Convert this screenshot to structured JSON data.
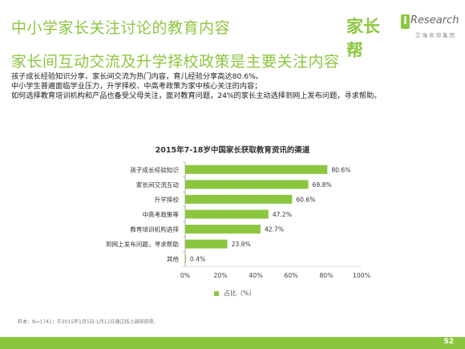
{
  "header": {
    "title": "中小学家长关注讨论的教育内容",
    "subtitle": "家长间互动交流及升学择校政策是主要关注内容"
  },
  "logos": {
    "jiazhangbang": "家长帮",
    "iresearch_i": "i",
    "iresearch": "Research",
    "iresearch_sub": "艾瑞咨询集团"
  },
  "description": [
    "孩子成长经验知识分享、家长间交流为热门内容，育儿经验分享高达80.6%。",
    "中小学生普遍面临学业压力，升学择校、中高考政策为家中核心关注的内容；",
    "如何选择教育培训机构和产品也备受父母关注，面对教育问题，24%的家长主动选择到网上发布问题，寻求帮助。"
  ],
  "chart_data": {
    "type": "bar",
    "orientation": "horizontal",
    "title": "2015年7-18岁中国家长获取教育资讯的渠道",
    "categories": [
      "孩子成长经验知识",
      "家长间交流互动",
      "升学择校",
      "中高考政策等",
      "教育培训机构选择",
      "到网上发布问题，寻求帮助",
      "其他"
    ],
    "values": [
      80.6,
      69.8,
      60.6,
      47.2,
      42.7,
      23.9,
      0.4
    ],
    "value_labels": [
      "80.6%",
      "69.8%",
      "60.6%",
      "47.2%",
      "42.7%",
      "23.9%",
      "0.4%"
    ],
    "xlim": [
      0,
      100
    ],
    "xticks": [
      "0%",
      "20%",
      "40%",
      "60%",
      "80%",
      "100%"
    ],
    "xtick_values": [
      0,
      20,
      40,
      60,
      80,
      100
    ],
    "series": [
      {
        "name": "占比（%）",
        "values": [
          80.6,
          69.8,
          60.6,
          47.2,
          42.7,
          23.9,
          0.4
        ]
      }
    ],
    "legend_position": "bottom",
    "grid": false,
    "bar_color": "#8cc63f"
  },
  "note": "样本：N=1741；于2015年1月5日-1月12日通过线上调研获得。",
  "footer": {
    "page_number": "52"
  }
}
